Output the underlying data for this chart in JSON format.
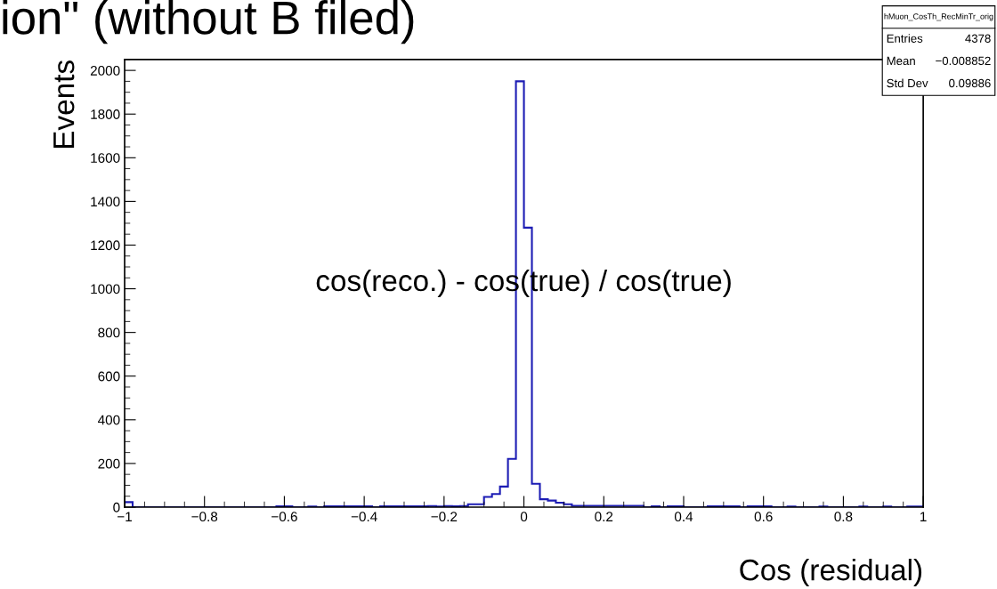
{
  "chart_data": {
    "type": "histogram",
    "title": "ion\" (without B filed)",
    "xlabel": "Cos (residual)",
    "ylabel": "Events",
    "bins": [
      -1,
      -0.98,
      -0.96,
      -0.94,
      -0.92,
      -0.9,
      -0.88,
      -0.86,
      -0.84,
      -0.82,
      -0.8,
      -0.78,
      -0.76,
      -0.74,
      -0.72,
      -0.7,
      -0.68,
      -0.66,
      -0.64,
      -0.62,
      -0.6,
      -0.58,
      -0.56,
      -0.54,
      -0.52,
      -0.5,
      -0.48,
      -0.46,
      -0.44,
      -0.42,
      -0.4,
      -0.38,
      -0.36,
      -0.34,
      -0.32,
      -0.3,
      -0.28,
      -0.26,
      -0.24,
      -0.22,
      -0.2,
      -0.18,
      -0.16,
      -0.14,
      -0.12,
      -0.1,
      -0.08,
      -0.06,
      -0.04,
      -0.02,
      0,
      0.02,
      0.04,
      0.06,
      0.08,
      0.1,
      0.12,
      0.14,
      0.16,
      0.18,
      0.2,
      0.22,
      0.24,
      0.26,
      0.28,
      0.3,
      0.32,
      0.34,
      0.36,
      0.38,
      0.4,
      0.42,
      0.44,
      0.46,
      0.48,
      0.5,
      0.52,
      0.54,
      0.56,
      0.58,
      0.6,
      0.62,
      0.64,
      0.66,
      0.68,
      0.7,
      0.72,
      0.74,
      0.76,
      0.78,
      0.8,
      0.82,
      0.84,
      0.86,
      0.88,
      0.9,
      0.92,
      0.94,
      0.96,
      0.98,
      1
    ],
    "values": [
      23,
      0,
      0,
      0,
      0,
      0,
      0,
      0,
      0,
      0,
      0,
      0,
      0,
      0,
      0,
      0,
      0,
      0,
      0,
      4,
      4,
      0,
      0,
      3,
      0,
      4,
      4,
      4,
      4,
      4,
      4,
      0,
      4,
      4,
      4,
      4,
      4,
      4,
      5,
      3,
      5,
      4,
      5,
      13,
      13,
      47,
      60,
      94,
      221,
      1950,
      1280,
      107,
      36,
      30,
      20,
      13,
      6,
      6,
      6,
      6,
      6,
      6,
      6,
      6,
      6,
      0,
      4,
      0,
      4,
      4,
      0,
      0,
      0,
      4,
      4,
      4,
      4,
      0,
      4,
      4,
      4,
      0,
      0,
      3,
      0,
      0,
      0,
      3,
      0,
      0,
      0,
      0,
      3,
      0,
      0,
      3,
      0,
      0,
      3,
      3
    ],
    "color": "#1c1cb4",
    "xlim": [
      -1,
      1
    ],
    "xticks": [
      {
        "value": -1,
        "label": "−1"
      },
      {
        "value": -0.8,
        "label": "−0.8"
      },
      {
        "value": -0.6,
        "label": "−0.6"
      },
      {
        "value": -0.4,
        "label": "−0.4"
      },
      {
        "value": -0.2,
        "label": "−0.2"
      },
      0,
      0.2,
      0.4,
      0.6,
      0.8,
      1
    ],
    "ylim": [
      0,
      2050
    ],
    "yticks": [
      0,
      200,
      400,
      600,
      800,
      1000,
      1200,
      1400,
      1600,
      1800,
      2000
    ],
    "grid": false,
    "annotations": [
      "cos(reco.) - cos(true) / cos(true)",
      "hMuon_CosTh_RecMinTr_orig",
      "Entries",
      "4378",
      "Mean",
      "−0.008852",
      "Std Dev",
      "0.09886"
    ]
  }
}
